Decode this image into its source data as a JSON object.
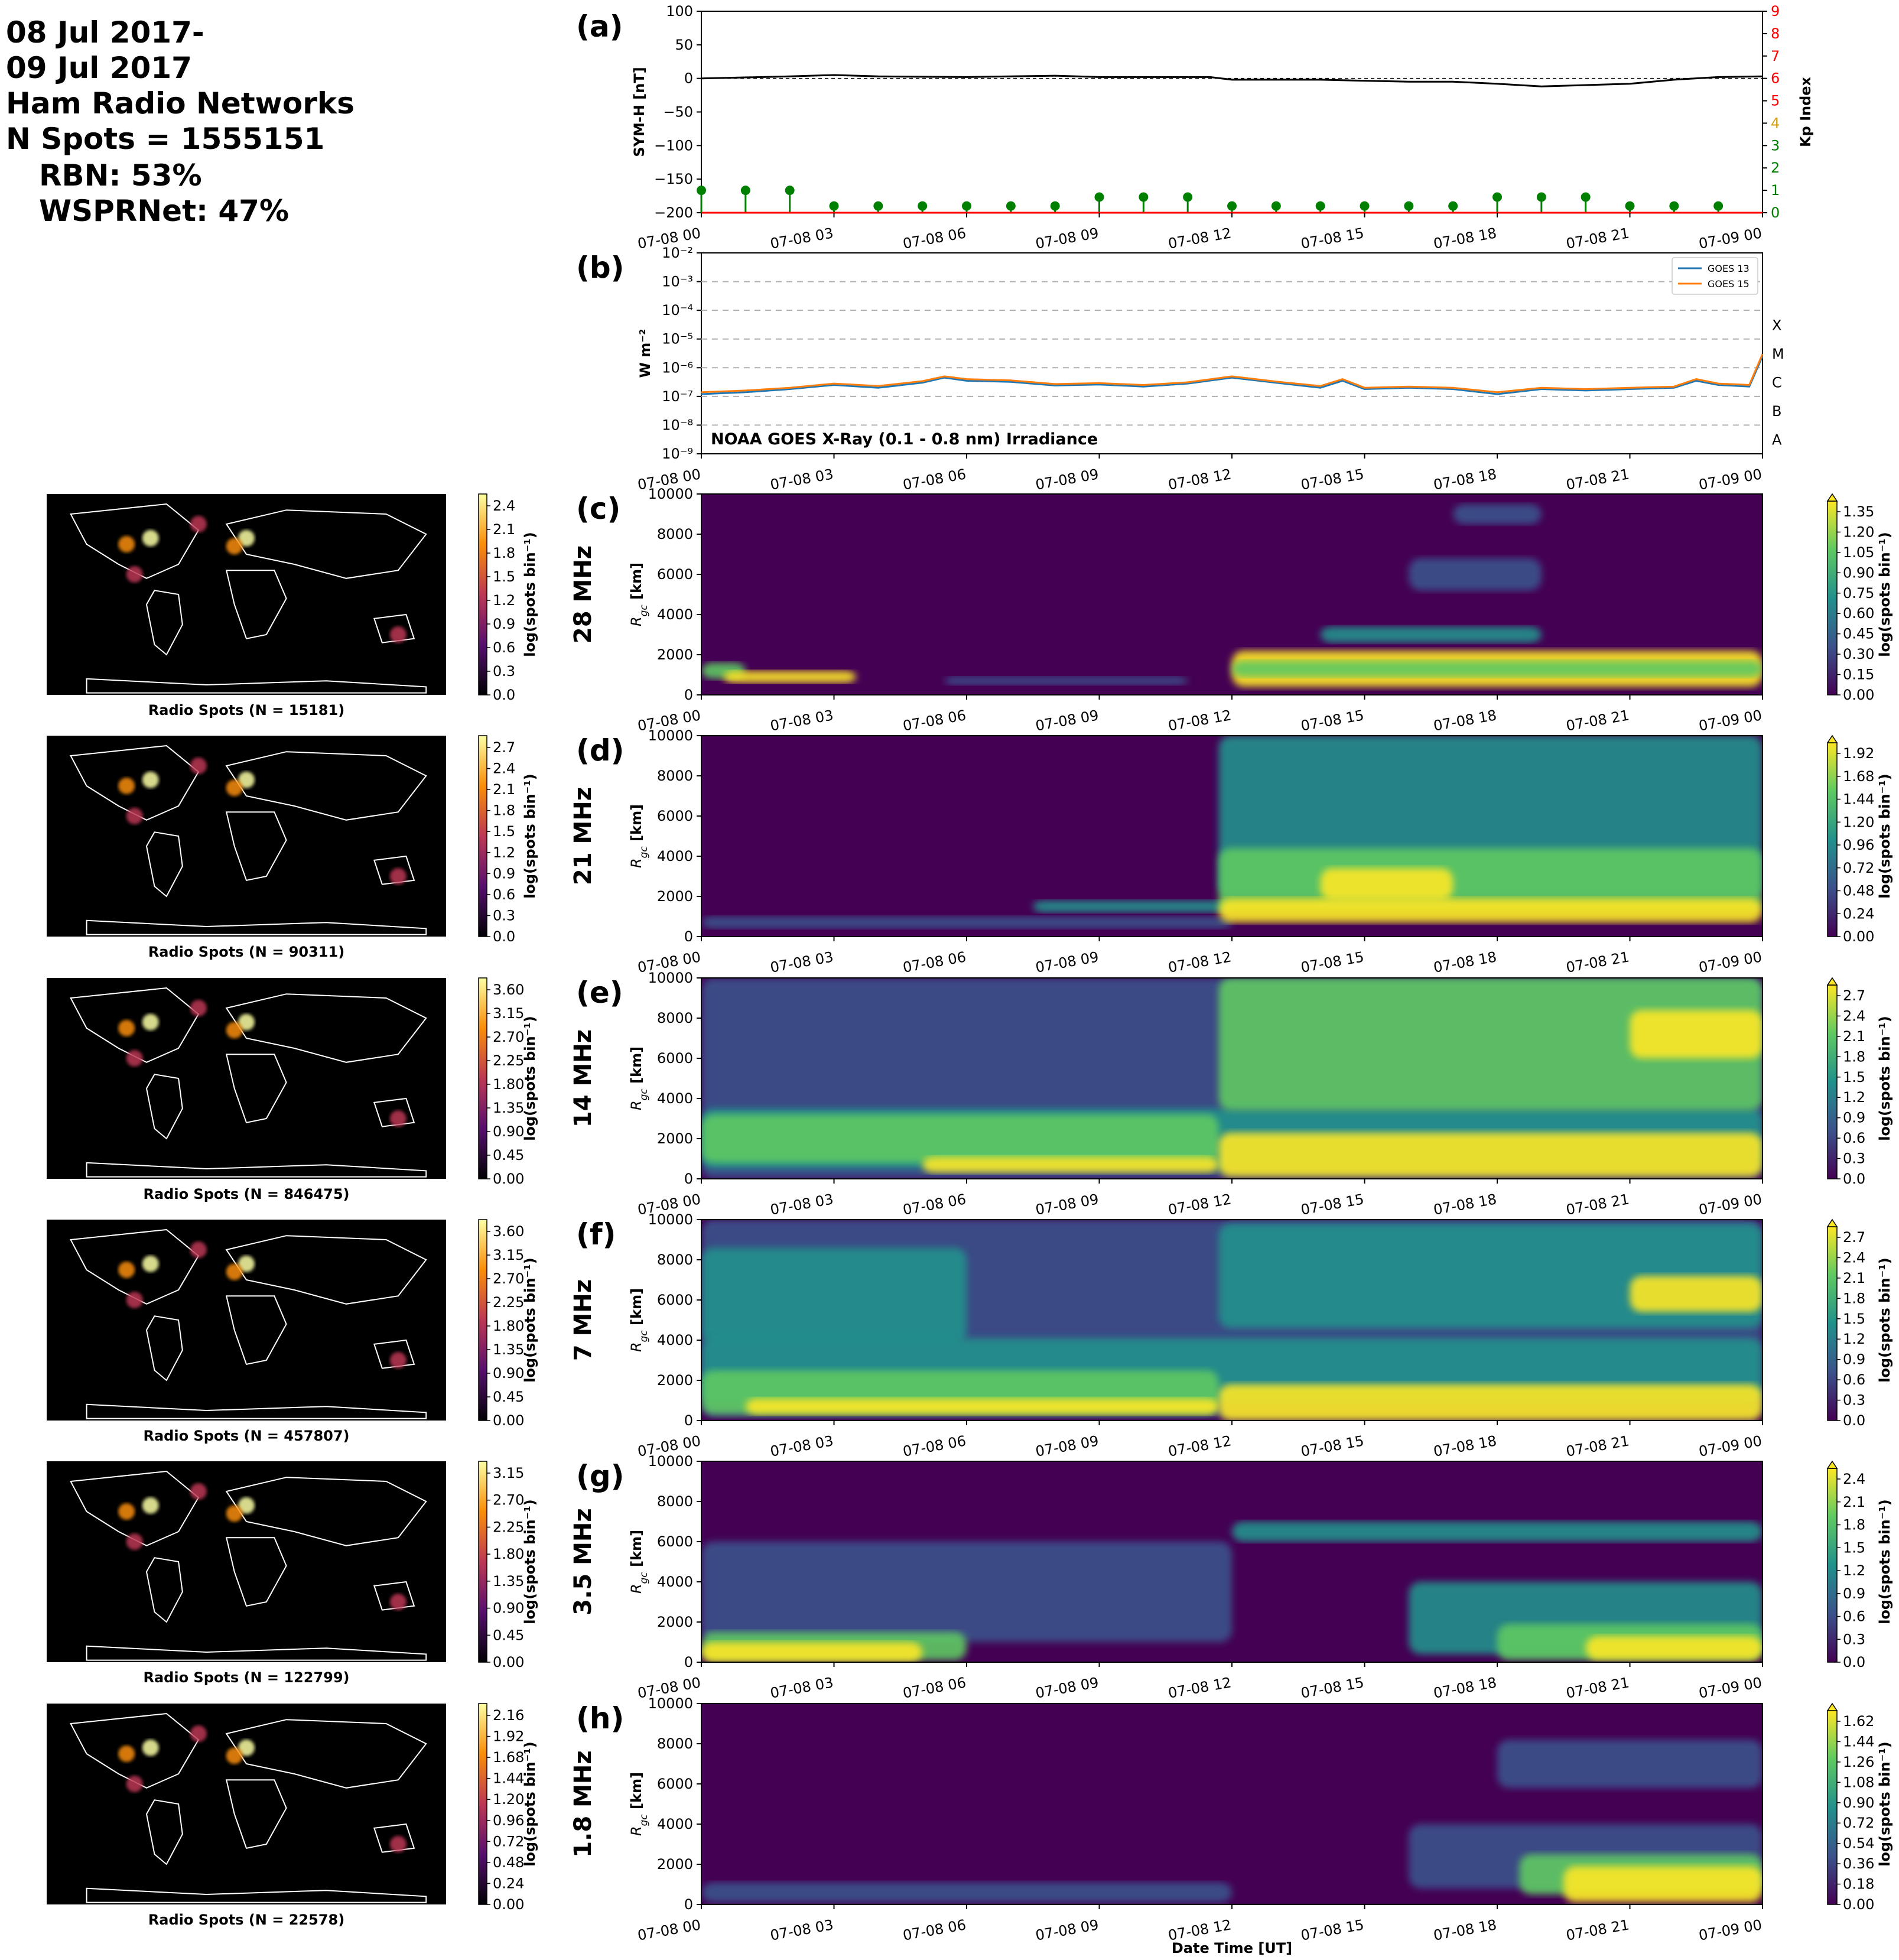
{
  "header": {
    "lines": [
      "08 Jul 2017-",
      "09 Jul 2017",
      "Ham Radio Networks",
      "N Spots = 1555151",
      "RBN: 53%",
      "WSPRNet: 47%"
    ]
  },
  "colors": {
    "symh_line": "#000000",
    "kp_low": "#008000",
    "kp_axis": "#ff0000",
    "goes13": "#1f77b4",
    "goes15": "#ff7f0e",
    "viridis": [
      "#440154",
      "#3b528b",
      "#21918c",
      "#5ec962",
      "#fde725"
    ],
    "inferno": [
      "#000004",
      "#57106e",
      "#bc3754",
      "#f98e09",
      "#fcffa4"
    ]
  },
  "x_tick_labels": [
    "07-08 00",
    "07-08 03",
    "07-08 06",
    "07-08 09",
    "07-08 12",
    "07-08 15",
    "07-08 18",
    "07-08 21",
    "07-09 00"
  ],
  "xlabel_bottom": "Date Time [UT]",
  "chart_data": [
    {
      "id": "a",
      "panel_label": "(a)",
      "type": "line",
      "ylabel": "SYM-H [nT]",
      "ylim": [
        -200,
        100
      ],
      "yticks": [
        "100",
        "50",
        "0",
        "−50",
        "−100",
        "−150",
        "−200"
      ],
      "y2label": "Kp Index",
      "y2lim": [
        0,
        9
      ],
      "y2ticks": [
        "0",
        "1",
        "2",
        "3",
        "4",
        "5",
        "6",
        "7",
        "8",
        "9"
      ],
      "x_hours": [
        0,
        2,
        3,
        4,
        6,
        8,
        9,
        10,
        11.5,
        12,
        14,
        16,
        17,
        18,
        19,
        21,
        22,
        23,
        24
      ],
      "symh_nT": [
        0,
        3,
        5,
        3,
        2,
        4,
        2,
        2,
        2,
        -2,
        -2,
        -5,
        -5,
        -8,
        -12,
        -8,
        -2,
        2,
        3
      ],
      "kp_x_hours": [
        0,
        1,
        2,
        3,
        4,
        5,
        6,
        7,
        8,
        9,
        10,
        11,
        12,
        13,
        14,
        15,
        16,
        17,
        18,
        19,
        20,
        21,
        22,
        23
      ],
      "kp": [
        1,
        1,
        1,
        0.3,
        0.3,
        0.3,
        0.3,
        0.3,
        0.3,
        0.7,
        0.7,
        0.7,
        0.3,
        0.3,
        0.3,
        0.3,
        0.3,
        0.3,
        0.7,
        0.7,
        0.7,
        0.3,
        0.3,
        0.3
      ]
    },
    {
      "id": "b",
      "panel_label": "(b)",
      "type": "line",
      "ylabel": "W m⁻²",
      "yscale": "log",
      "ylim": [
        1e-09,
        0.01
      ],
      "yticks": [
        "10⁻²",
        "10⁻³",
        "10⁻⁴",
        "10⁻⁵",
        "10⁻⁶",
        "10⁻⁷",
        "10⁻⁸",
        "10⁻⁹"
      ],
      "flare_classes": [
        "X",
        "M",
        "C",
        "B",
        "A"
      ],
      "annotation": "NOAA GOES X-Ray (0.1 - 0.8 nm) Irradiance",
      "x_hours": [
        0,
        1,
        2,
        3,
        4,
        5,
        5.5,
        6,
        7,
        8,
        9,
        10,
        11,
        12,
        13,
        14,
        14.5,
        15,
        16,
        17,
        18,
        19,
        20,
        21,
        22,
        22.5,
        23,
        23.7,
        24
      ],
      "series": [
        {
          "name": "GOES 13",
          "values": [
            1.2e-07,
            1.4e-07,
            1.8e-07,
            2.5e-07,
            2e-07,
            3e-07,
            4.5e-07,
            3.5e-07,
            3.2e-07,
            2.4e-07,
            2.6e-07,
            2.2e-07,
            2.8e-07,
            4.5e-07,
            3e-07,
            2e-07,
            3.5e-07,
            1.8e-07,
            2e-07,
            1.8e-07,
            1.2e-07,
            1.8e-07,
            1.6e-07,
            1.8e-07,
            2e-07,
            3.5e-07,
            2.5e-07,
            2.2e-07,
            2.5e-06
          ]
        },
        {
          "name": "GOES 15",
          "values": [
            1.4e-07,
            1.6e-07,
            2e-07,
            2.8e-07,
            2.3e-07,
            3.4e-07,
            5e-07,
            4e-07,
            3.6e-07,
            2.7e-07,
            2.9e-07,
            2.5e-07,
            3.1e-07,
            5e-07,
            3.3e-07,
            2.3e-07,
            4e-07,
            2e-07,
            2.2e-07,
            2e-07,
            1.4e-07,
            2e-07,
            1.8e-07,
            2e-07,
            2.2e-07,
            4e-07,
            2.8e-07,
            2.5e-07,
            3e-06
          ]
        }
      ]
    },
    {
      "id": "c",
      "panel_label": "(c)",
      "band": "28 MHz",
      "type": "heatmap",
      "ylabel": "R_gc [km]",
      "ylim": [
        0,
        10000
      ],
      "yticks": [
        "0",
        "2000",
        "4000",
        "6000",
        "8000",
        "10000"
      ],
      "cbar_label": "log(spots bin⁻¹)",
      "cbar_ticks": [
        "0.00",
        "0.15",
        "0.30",
        "0.45",
        "0.60",
        "0.75",
        "0.90",
        "1.05",
        "1.20",
        "1.35"
      ],
      "map_caption": "Radio Spots (N = 15181)",
      "map_cbar_ticks": [
        "0.0",
        "0.3",
        "0.6",
        "0.9",
        "1.2",
        "1.5",
        "1.8",
        "2.1",
        "2.4"
      ]
    },
    {
      "id": "d",
      "panel_label": "(d)",
      "band": "21 MHz",
      "type": "heatmap",
      "ylabel": "R_gc [km]",
      "ylim": [
        0,
        10000
      ],
      "yticks": [
        "0",
        "2000",
        "4000",
        "6000",
        "8000",
        "10000"
      ],
      "cbar_label": "log(spots bin⁻¹)",
      "cbar_ticks": [
        "0.00",
        "0.24",
        "0.48",
        "0.72",
        "0.96",
        "1.20",
        "1.44",
        "1.68",
        "1.92"
      ],
      "map_caption": "Radio Spots (N = 90311)",
      "map_cbar_ticks": [
        "0.0",
        "0.3",
        "0.6",
        "0.9",
        "1.2",
        "1.5",
        "1.8",
        "2.1",
        "2.4",
        "2.7"
      ]
    },
    {
      "id": "e",
      "panel_label": "(e)",
      "band": "14 MHz",
      "type": "heatmap",
      "ylabel": "R_gc [km]",
      "ylim": [
        0,
        10000
      ],
      "yticks": [
        "0",
        "2000",
        "4000",
        "6000",
        "8000",
        "10000"
      ],
      "cbar_label": "log(spots bin⁻¹)",
      "cbar_ticks": [
        "0.0",
        "0.3",
        "0.6",
        "0.9",
        "1.2",
        "1.5",
        "1.8",
        "2.1",
        "2.4",
        "2.7"
      ],
      "map_caption": "Radio Spots (N = 846475)",
      "map_cbar_ticks": [
        "0.00",
        "0.45",
        "0.90",
        "1.35",
        "1.80",
        "2.25",
        "2.70",
        "3.15",
        "3.60"
      ]
    },
    {
      "id": "f",
      "panel_label": "(f)",
      "band": "7 MHz",
      "type": "heatmap",
      "ylabel": "R_gc [km]",
      "ylim": [
        0,
        10000
      ],
      "yticks": [
        "0",
        "2000",
        "4000",
        "6000",
        "8000",
        "10000"
      ],
      "cbar_label": "log(spots bin⁻¹)",
      "cbar_ticks": [
        "0.0",
        "0.3",
        "0.6",
        "0.9",
        "1.2",
        "1.5",
        "1.8",
        "2.1",
        "2.4",
        "2.7"
      ],
      "map_caption": "Radio Spots (N = 457807)",
      "map_cbar_ticks": [
        "0.00",
        "0.45",
        "0.90",
        "1.35",
        "1.80",
        "2.25",
        "2.70",
        "3.15",
        "3.60"
      ]
    },
    {
      "id": "g",
      "panel_label": "(g)",
      "band": "3.5 MHz",
      "type": "heatmap",
      "ylabel": "R_gc [km]",
      "ylim": [
        0,
        10000
      ],
      "yticks": [
        "0",
        "2000",
        "4000",
        "6000",
        "8000",
        "10000"
      ],
      "cbar_label": "log(spots bin⁻¹)",
      "cbar_ticks": [
        "0.0",
        "0.3",
        "0.6",
        "0.9",
        "1.2",
        "1.5",
        "1.8",
        "2.1",
        "2.4"
      ],
      "map_caption": "Radio Spots (N = 122799)",
      "map_cbar_ticks": [
        "0.00",
        "0.45",
        "0.90",
        "1.35",
        "1.80",
        "2.25",
        "2.70",
        "3.15"
      ]
    },
    {
      "id": "h",
      "panel_label": "(h)",
      "band": "1.8 MHz",
      "type": "heatmap",
      "ylabel": "R_gc [km]",
      "ylim": [
        0,
        10000
      ],
      "yticks": [
        "0",
        "2000",
        "4000",
        "6000",
        "8000",
        "10000"
      ],
      "cbar_label": "log(spots bin⁻¹)",
      "cbar_ticks": [
        "0.00",
        "0.18",
        "0.36",
        "0.54",
        "0.72",
        "0.90",
        "1.08",
        "1.26",
        "1.44",
        "1.62"
      ],
      "map_caption": "Radio Spots (N = 22578)",
      "map_cbar_ticks": [
        "0.00",
        "0.24",
        "0.48",
        "0.72",
        "0.96",
        "1.20",
        "1.44",
        "1.68",
        "1.92",
        "2.16"
      ]
    }
  ]
}
